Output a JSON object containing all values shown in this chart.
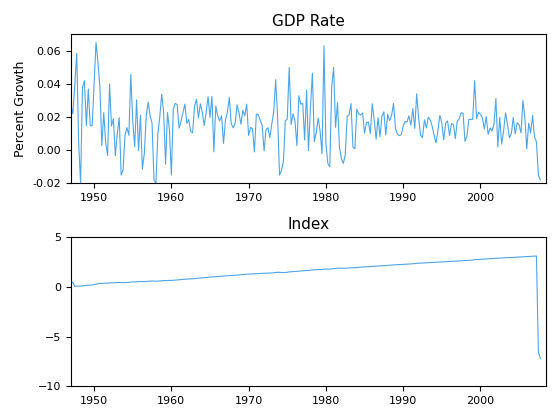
{
  "gdp_title": "GDP Rate",
  "index_title": "Index",
  "gdp_ylabel": "Percent Growth",
  "gdp_ylim": [
    -0.02,
    0.07
  ],
  "index_ylim": [
    -10,
    5
  ],
  "xlim_start": 1947.0,
  "xlim_end": 2008.5,
  "xticks": [
    1950,
    1960,
    1970,
    1980,
    1990,
    2000
  ],
  "line_color": "#4da6e8",
  "bg_color": "#ffffff",
  "gdp_yticks": [
    -0.02,
    0.0,
    0.02,
    0.04,
    0.06
  ],
  "index_yticks": [
    -10,
    -5,
    0,
    5
  ],
  "title_fontsize": 11,
  "label_fontsize": 9,
  "tick_fontsize": 8,
  "linewidth": 0.8
}
